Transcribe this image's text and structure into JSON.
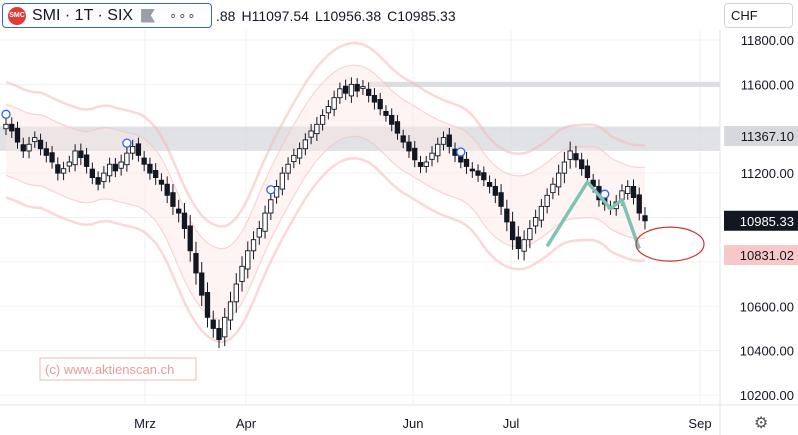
{
  "header": {
    "symbol_title": "SMI · 1T · SIX",
    "logo_text": "SMC",
    "ohlc": {
      "o": ".88",
      "h": "H11097.54",
      "l": "L10956.38",
      "c": "C10985.33"
    },
    "currency": "CHF",
    "flag_icon": "flag-icon",
    "more_icon": "more-dots-icon",
    "settings_icon": "gear-icon"
  },
  "watermark": "(c) www.aktienscan.ch",
  "price_labels": {
    "level_1": "11367.10",
    "last": "10985.33",
    "target": "10831.02"
  },
  "colors": {
    "up": "#131722",
    "down": "#ffffff",
    "channel": "#f7b8b8",
    "zigzag": "#7fc3b3",
    "target_ellipse": "#d32f2f",
    "last_bg": "#131722",
    "level_bg": "#f8c8c8"
  },
  "chart_data": {
    "type": "candlestick",
    "title": "",
    "xlabel": "",
    "ylabel": "",
    "y_ticks": [
      10200,
      10400,
      10600,
      10800,
      11000,
      11200,
      11400,
      11600,
      11800
    ],
    "y_tick_labels": [
      "10200.00",
      "10400.00",
      "10600.00",
      "",
      "",
      "11200.00",
      "",
      "11600.00",
      "11800.00"
    ],
    "ylim": [
      10140,
      11860
    ],
    "x_labels": [
      "Mrz",
      "Apr",
      "Jun",
      "Jul",
      "Sep"
    ],
    "levels": [
      11367.1,
      11600
    ],
    "close": [
      11420,
      11390,
      11340,
      11300,
      11330,
      11360,
      11310,
      11280,
      11250,
      11200,
      11220,
      11250,
      11300,
      11270,
      11230,
      11180,
      11150,
      11200,
      11240,
      11210,
      11250,
      11290,
      11320,
      11280,
      11240,
      11200,
      11180,
      11150,
      11100,
      11050,
      11020,
      10950,
      10850,
      10750,
      10650,
      10550,
      10500,
      10450,
      10550,
      10620,
      10700,
      10780,
      10850,
      10900,
      10950,
      11020,
      11080,
      11140,
      11200,
      11240,
      11280,
      11310,
      11350,
      11390,
      11420,
      11460,
      11500,
      11540,
      11580,
      11560,
      11600,
      11570,
      11590,
      11550,
      11520,
      11490,
      11460,
      11420,
      11380,
      11340,
      11300,
      11260,
      11230,
      11250,
      11290,
      11330,
      11360,
      11320,
      11280,
      11250,
      11230,
      11210,
      11190,
      11170,
      11140,
      11100,
      11050,
      10980,
      10900,
      10860,
      10900,
      10950,
      11000,
      11050,
      11100,
      11150,
      11200,
      11250,
      11300,
      11260,
      11220,
      11180,
      11140,
      11080,
      11060,
      11040,
      11070,
      11120,
      11140,
      11090,
      11020,
      10985
    ],
    "range": [
      80,
      90,
      85,
      90,
      95,
      80,
      85,
      90,
      85,
      95,
      90,
      80,
      85,
      95,
      90,
      85,
      80,
      90,
      85,
      80,
      95,
      90,
      85,
      80,
      90,
      85,
      95,
      90,
      100,
      110,
      120,
      130,
      140,
      150,
      140,
      130,
      120,
      110,
      120,
      130,
      140,
      130,
      120,
      110,
      100,
      95,
      90,
      85,
      80,
      90,
      85,
      80,
      85,
      90,
      95,
      80,
      85,
      90,
      80,
      85,
      90,
      80,
      85,
      90,
      95,
      85,
      80,
      90,
      85,
      80,
      90,
      95,
      85,
      80,
      90,
      85,
      80,
      90,
      85,
      80,
      95,
      90,
      85,
      80,
      90,
      100,
      110,
      120,
      130,
      140,
      120,
      110,
      100,
      95,
      90,
      85,
      110,
      130,
      120,
      100,
      90,
      85,
      80,
      90,
      85,
      80,
      90,
      85,
      80,
      90,
      95,
      110
    ],
    "channel_lines": [
      {
        "offset_top": 260,
        "offset_bottom": -260
      },
      {
        "offset_top": 160,
        "offset_bottom": -160
      }
    ],
    "zigzag_points": [
      [
        94,
        10870
      ],
      [
        101,
        11160
      ],
      [
        105,
        11040
      ],
      [
        107,
        11080
      ],
      [
        110,
        10860
      ]
    ],
    "markers_idx": [
      0,
      21,
      46,
      79,
      104
    ]
  }
}
